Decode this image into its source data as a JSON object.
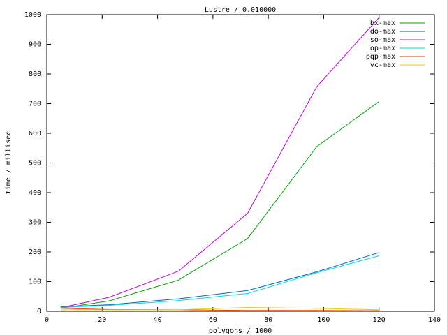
{
  "chart_data": {
    "type": "line",
    "title": "Lustre / 0.010000",
    "x_label": "polygons / 1000",
    "y_label": "time / millisec",
    "x": [
      5,
      22.5,
      47.5,
      72.5,
      97.5,
      120
    ],
    "series": [
      {
        "name": "bx-max",
        "color": "#00a000",
        "values": [
          10,
          35,
          105,
          245,
          555,
          707
        ]
      },
      {
        "name": "do-max",
        "color": "#0066cc",
        "values": [
          15,
          22,
          42,
          70,
          133,
          198
        ]
      },
      {
        "name": "so-max",
        "color": "#c000e0",
        "values": [
          12,
          47,
          135,
          330,
          757,
          990
        ]
      },
      {
        "name": "op-max",
        "color": "#00d8d8",
        "values": [
          13,
          20,
          36,
          60,
          130,
          187
        ]
      },
      {
        "name": "pqp-max",
        "color": "#e04000",
        "values": [
          10,
          6,
          5,
          3,
          3,
          2
        ]
      },
      {
        "name": "vc-max",
        "color": "#e0d000",
        "values": [
          5,
          5,
          5,
          13,
          10,
          5
        ]
      }
    ],
    "xlim": [
      0,
      140
    ],
    "xticks": [
      0,
      20,
      40,
      60,
      80,
      100,
      120,
      140
    ],
    "ylim": [
      0,
      1000
    ],
    "yticks": [
      0,
      100,
      200,
      300,
      400,
      500,
      600,
      700,
      800,
      900,
      1000
    ],
    "grid": false,
    "legend": "top-right"
  }
}
